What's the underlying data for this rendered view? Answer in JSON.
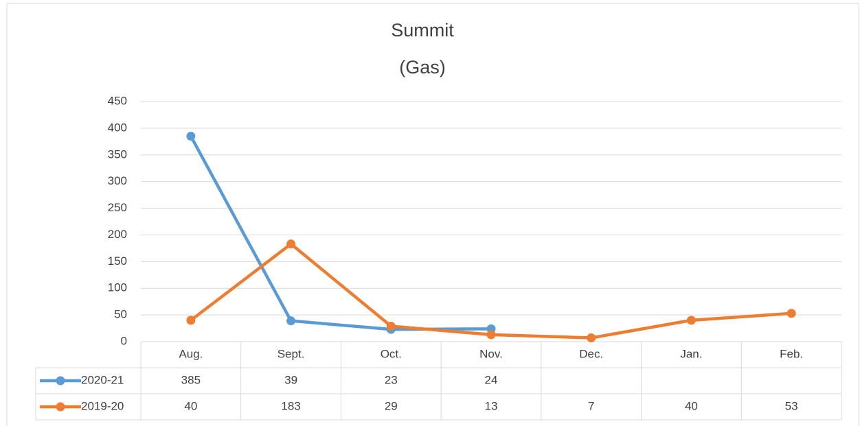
{
  "chart_data": {
    "type": "line",
    "title": [
      "Summit",
      "(Gas)"
    ],
    "categories": [
      "Aug.",
      "Sept.",
      "Oct.",
      "Nov.",
      "Dec.",
      "Jan.",
      "Feb."
    ],
    "series": [
      {
        "name": "2020-21",
        "color": "#5b9bd5",
        "values": [
          385,
          39,
          23,
          24,
          null,
          null,
          null
        ]
      },
      {
        "name": "2019-20",
        "color": "#ed7d31",
        "values": [
          40,
          183,
          29,
          13,
          7,
          40,
          53
        ]
      }
    ],
    "ylim": [
      0,
      450
    ],
    "yticks": [
      0,
      50,
      100,
      150,
      200,
      250,
      300,
      350,
      400,
      450
    ],
    "grid": true
  }
}
